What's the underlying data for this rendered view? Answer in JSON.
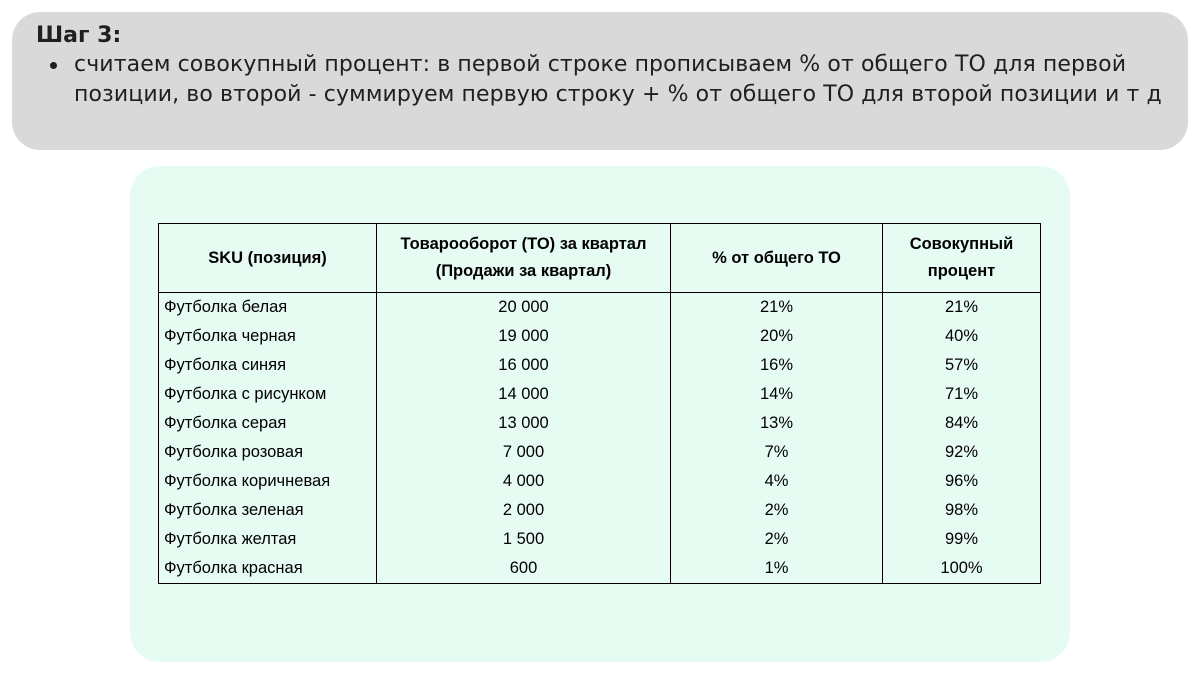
{
  "callout": {
    "title": "Шаг 3:",
    "bullets": [
      "считаем совокупный процент: в первой строке прописываем % от общего ТО для первой позиции, во второй - суммируем первую строку + % от общего ТО для второй позиции и т д"
    ]
  },
  "table": {
    "headers": {
      "sku": "SKU (позиция)",
      "turnover_line1": "Товарооборот (ТО) за квартал",
      "turnover_line2": "(Продажи за квартал)",
      "share": "% от общего ТО",
      "cumulative_line1": "Совокупный",
      "cumulative_line2": "процент"
    },
    "rows": [
      {
        "sku": "Футболка белая",
        "turnover": "20 000",
        "share": "21%",
        "cumulative": "21%"
      },
      {
        "sku": "Футболка черная",
        "turnover": "19 000",
        "share": "20%",
        "cumulative": "40%"
      },
      {
        "sku": "Футболка синяя",
        "turnover": "16 000",
        "share": "16%",
        "cumulative": "57%"
      },
      {
        "sku": "Футболка с рисунком",
        "turnover": "14 000",
        "share": "14%",
        "cumulative": "71%"
      },
      {
        "sku": "Футболка серая",
        "turnover": "13 000",
        "share": "13%",
        "cumulative": "84%"
      },
      {
        "sku": "Футболка розовая",
        "turnover": "7 000",
        "share": "7%",
        "cumulative": "92%"
      },
      {
        "sku": "Футболка коричневая",
        "turnover": "4 000",
        "share": "4%",
        "cumulative": "96%"
      },
      {
        "sku": "Футболка зеленая",
        "turnover": "2 000",
        "share": "2%",
        "cumulative": "98%"
      },
      {
        "sku": "Футболка желтая",
        "turnover": "1 500",
        "share": "2%",
        "cumulative": "99%"
      },
      {
        "sku": "Футболка красная",
        "turnover": "600",
        "share": "1%",
        "cumulative": "100%"
      }
    ]
  },
  "colors": {
    "callout_bg": "#d9d9d9",
    "panel_bg": "#e6fbf2",
    "text": "#1f1f1f"
  }
}
